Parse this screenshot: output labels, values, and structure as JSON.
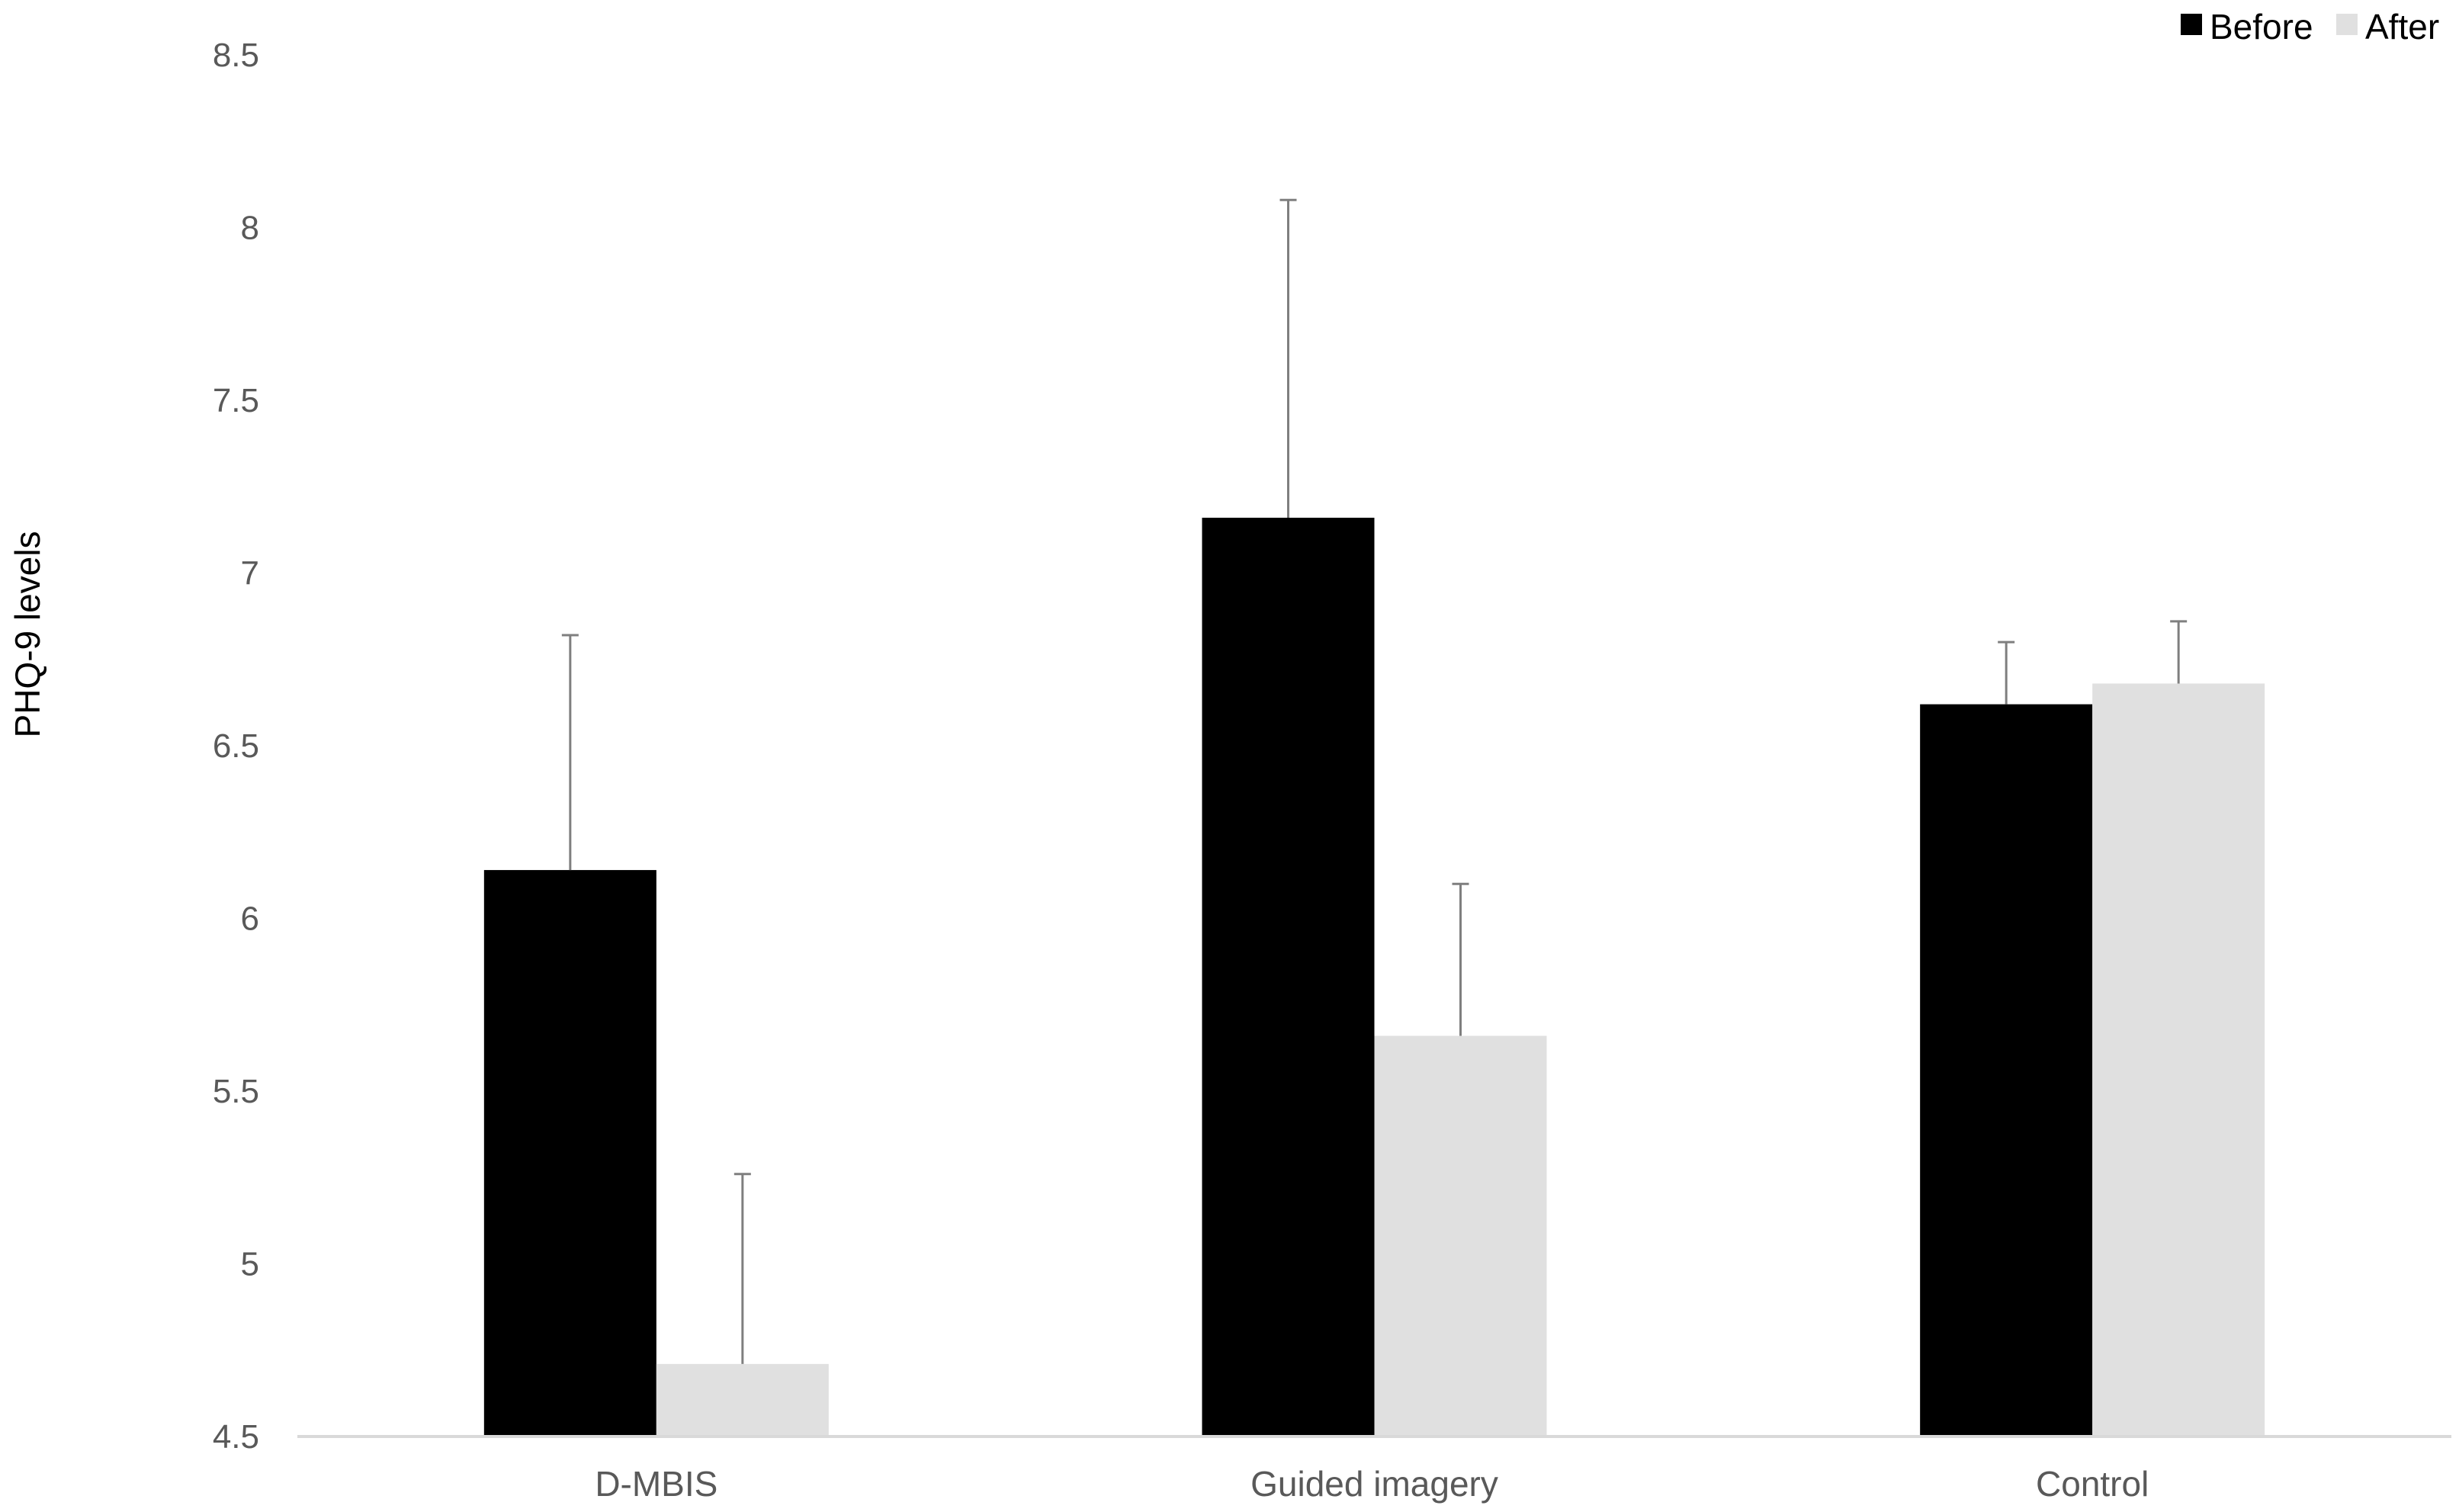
{
  "chart_data": {
    "type": "bar",
    "title": "",
    "xlabel": "",
    "ylabel": "PHQ-9 levels",
    "categories": [
      "D-MBIS",
      "Guided imagery",
      "Control"
    ],
    "series": [
      {
        "name": "Before",
        "color": "#000000",
        "values": [
          6.14,
          7.16,
          6.62
        ],
        "error_upper": [
          6.82,
          8.08,
          6.8
        ]
      },
      {
        "name": "After",
        "color": "#e0e0e0",
        "values": [
          4.71,
          5.66,
          6.68
        ],
        "error_upper": [
          5.26,
          6.1,
          6.86
        ]
      }
    ],
    "ylim": [
      4.5,
      8.5
    ],
    "yticks": [
      "4.5",
      "5",
      "5.5",
      "6",
      "6.5",
      "7",
      "7.5",
      "8",
      "8.5"
    ],
    "grid": false,
    "legend_position": "top-right"
  }
}
